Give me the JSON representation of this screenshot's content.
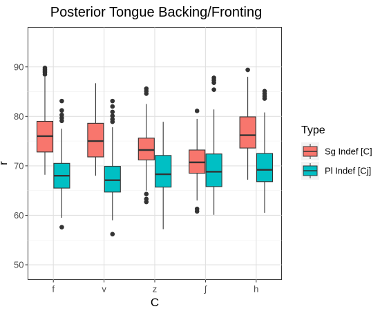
{
  "chart_data": {
    "type": "box",
    "title": "Posterior Tongue Backing/Fronting",
    "xlabel": "C",
    "ylabel": "r",
    "categories": [
      "f",
      "v",
      "z",
      "ʃ",
      "h"
    ],
    "ylim": [
      47,
      98
    ],
    "yticks": [
      50,
      60,
      70,
      80,
      90
    ],
    "grid": true,
    "legend": {
      "title": "Type",
      "position": "right"
    },
    "series": [
      {
        "name": "Sg Indef [C]",
        "color": "#F8766D",
        "boxes": [
          {
            "category": "f",
            "whisker_low": 68.2,
            "q1": 72.8,
            "median": 76.0,
            "q3": 79.0,
            "whisker_high": 88.0,
            "outliers": [
              88.5,
              88.9,
              89.2,
              89.5,
              89.8
            ]
          },
          {
            "category": "v",
            "whisker_low": 68.0,
            "q1": 71.8,
            "median": 75.0,
            "q3": 78.6,
            "whisker_high": 86.7,
            "outliers": []
          },
          {
            "category": "z",
            "whisker_low": 65.0,
            "q1": 71.2,
            "median": 73.2,
            "q3": 75.6,
            "whisker_high": 82.5,
            "outliers": [
              62.7,
              63.3,
              64.3,
              84.6,
              85.1,
              85.6
            ]
          },
          {
            "category": "ʃ",
            "whisker_low": 63.0,
            "q1": 68.5,
            "median": 70.7,
            "q3": 73.2,
            "whisker_high": 79.5,
            "outliers": [
              60.8,
              61.3,
              81.1
            ]
          },
          {
            "category": "h",
            "whisker_low": 67.2,
            "q1": 73.6,
            "median": 76.2,
            "q3": 79.9,
            "whisker_high": 88.0,
            "outliers": [
              89.4
            ]
          }
        ]
      },
      {
        "name": "Pl Indef [Cj]",
        "color": "#00BFC4",
        "boxes": [
          {
            "category": "f",
            "whisker_low": 59.5,
            "q1": 65.5,
            "median": 68.0,
            "q3": 70.5,
            "whisker_high": 77.5,
            "outliers": [
              57.6,
              79.1,
              79.7,
              80.3,
              81.2,
              83.1
            ]
          },
          {
            "category": "v",
            "whisker_low": 59.0,
            "q1": 64.7,
            "median": 67.1,
            "q3": 69.9,
            "whisker_high": 77.8,
            "outliers": [
              56.2,
              78.9,
              79.4,
              80.1,
              80.9,
              82.0,
              83.1
            ]
          },
          {
            "category": "z",
            "whisker_low": 57.2,
            "q1": 65.7,
            "median": 68.3,
            "q3": 72.1,
            "whisker_high": 78.9,
            "outliers": []
          },
          {
            "category": "ʃ",
            "whisker_low": 60.1,
            "q1": 65.8,
            "median": 68.8,
            "q3": 72.4,
            "whisker_high": 81.4,
            "outliers": [
              85.4,
              86.8,
              87.3,
              87.8
            ]
          },
          {
            "category": "h",
            "whisker_low": 60.5,
            "q1": 66.8,
            "median": 69.2,
            "q3": 72.5,
            "whisker_high": 80.8,
            "outliers": [
              83.6,
              84.1,
              84.6,
              85.1
            ]
          }
        ]
      }
    ]
  }
}
